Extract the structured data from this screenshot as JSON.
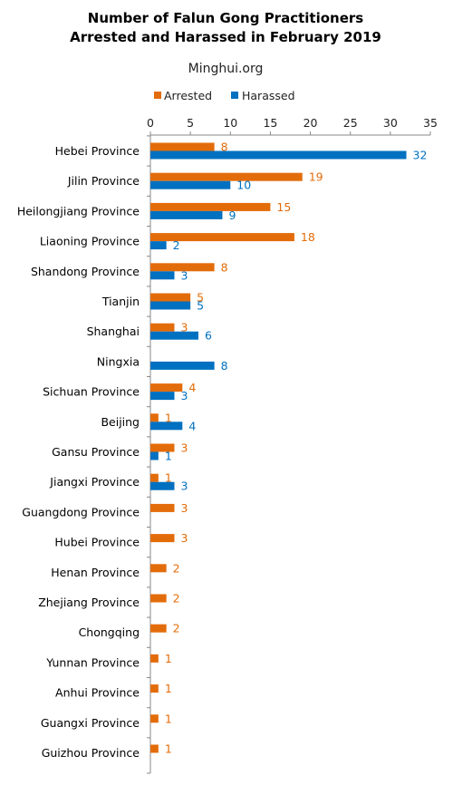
{
  "chart_data": {
    "type": "bar",
    "orientation": "horizontal",
    "title_lines": [
      "Number of Falun Gong Practitioners",
      "Arrested and Harassed in February 2019"
    ],
    "subtitle": "Minghui.org",
    "legend_position": "top",
    "xlim": [
      0,
      35
    ],
    "x_ticks": [
      0,
      5,
      10,
      15,
      20,
      25,
      30,
      35
    ],
    "x_axis_position": "top",
    "grid": false,
    "categories": [
      "Hebei Province",
      "Jilin Province",
      "Heilongjiang Province",
      "Liaoning Province",
      "Shandong Province",
      "Tianjin",
      "Shanghai",
      "Ningxia",
      "Sichuan Province",
      "Beijing",
      "Gansu Province",
      "Jiangxi Province",
      "Guangdong Province",
      "Hubei Province",
      "Henan Province",
      "Zhejiang Province",
      "Chongqing",
      "Yunnan Province",
      "Anhui Province",
      "Guangxi Province",
      "Guizhou Province"
    ],
    "series": [
      {
        "name": "Arrested",
        "color": "#e36c0a",
        "values": [
          8,
          19,
          15,
          18,
          8,
          5,
          3,
          null,
          4,
          1,
          3,
          1,
          3,
          3,
          2,
          2,
          2,
          1,
          1,
          1,
          1
        ]
      },
      {
        "name": "Harassed",
        "color": "#0070c0",
        "values": [
          32,
          10,
          9,
          2,
          3,
          5,
          6,
          8,
          3,
          4,
          1,
          3,
          null,
          null,
          null,
          null,
          null,
          null,
          null,
          null,
          null
        ]
      }
    ]
  }
}
